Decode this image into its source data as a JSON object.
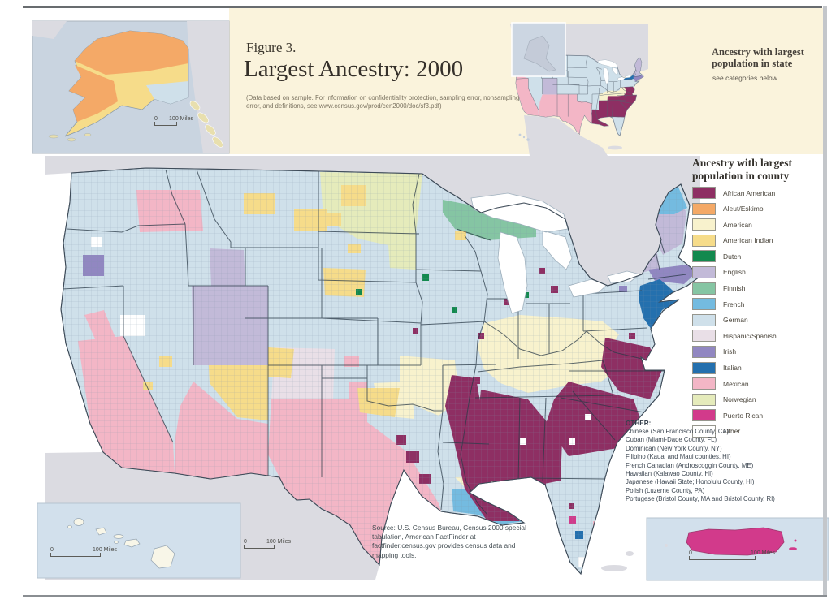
{
  "figure": {
    "number": "Figure 3.",
    "title": "Largest Ancestry: 2000",
    "note": "(Data based on sample. For information on confidentiality protection, sampling error, nonsampling error, and definitions, see www.census.gov/prod/cen2000/doc/sf3.pdf)"
  },
  "state_inset": {
    "heading": "Ancestry with largest\npopulation in state",
    "subheading": "see categories below"
  },
  "legend": {
    "title": "Ancestry with largest\npopulation in county",
    "items": [
      {
        "key": "african_american",
        "label": "African American"
      },
      {
        "key": "aleut_eskimo",
        "label": "Aleut/Eskimo"
      },
      {
        "key": "american",
        "label": "American"
      },
      {
        "key": "american_indian",
        "label": "American Indian"
      },
      {
        "key": "dutch",
        "label": "Dutch"
      },
      {
        "key": "english",
        "label": "English"
      },
      {
        "key": "finnish",
        "label": "Finnish"
      },
      {
        "key": "french",
        "label": "French"
      },
      {
        "key": "german",
        "label": "German"
      },
      {
        "key": "hispanic_spanish",
        "label": "Hispanic/Spanish"
      },
      {
        "key": "irish",
        "label": "Irish"
      },
      {
        "key": "italian",
        "label": "Italian"
      },
      {
        "key": "mexican",
        "label": "Mexican"
      },
      {
        "key": "norwegian",
        "label": "Norwegian"
      },
      {
        "key": "puerto_rican",
        "label": "Puerto Rican"
      },
      {
        "key": "other",
        "label": "Other"
      }
    ]
  },
  "other_note": {
    "heading": "OTHER:",
    "lines": [
      "Chinese (San Francisco County, CA)",
      "Cuban (Miami-Dade County, FL)",
      "Dominican (New York County, NY)",
      "Filipino (Kauai and Maui counties, HI)",
      "French Canadian (Androscoggin County, ME)",
      "Hawaiian (Kalawao County, HI)",
      "Japanese (Hawaii State; Honolulu County, HI)",
      "Polish (Luzerne County, PA)",
      "Portugese (Bristol County, MA and Bristol County, RI)"
    ]
  },
  "source": "Source: U.S. Census Bureau, Census 2000 special tabulation, American FactFinder at factfinder.census.gov provides census data and mapping tools.",
  "scalebar": {
    "zero": "0",
    "miles": "100 Miles"
  },
  "colors": {
    "ancestry": {
      "african_american": "#8e2f63",
      "aleut_eskimo": "#f4a967",
      "american": "#f8f2cd",
      "american_indian": "#f6dc8a",
      "dutch": "#12894e",
      "english": "#c2bad8",
      "finnish": "#85c5a3",
      "french": "#74bbe0",
      "german": "#cfe0ea",
      "hispanic_spanish": "#e9dfe7",
      "irish": "#9187c1",
      "italian": "#2470ae",
      "mexican": "#f3b6c6",
      "norwegian": "#e5ebbb",
      "puerto_rican": "#d23a8b",
      "other": "#ffffff"
    },
    "map": {
      "band": "#faf3dc",
      "canada": "#dbdbe1",
      "mexico": "#dbdbe1",
      "water_inset": "#d2e0ec",
      "alaska_water": "#c9d4e0",
      "panhandle_land": "#e8dfae"
    }
  }
}
